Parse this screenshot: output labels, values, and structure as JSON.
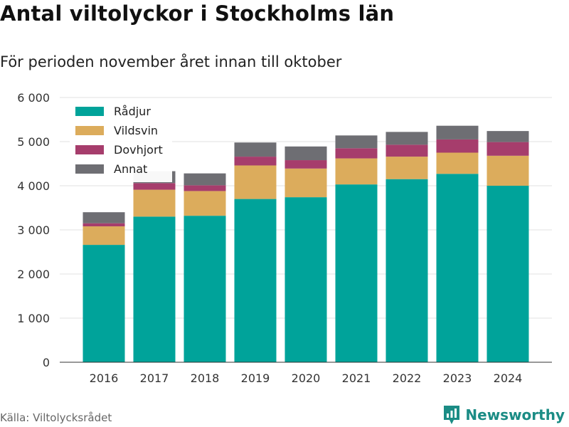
{
  "header": {
    "title": "Antal viltolyckor i Stockholms län",
    "subtitle": "För perioden november året innan till oktober"
  },
  "footer": {
    "source": "Källa: Viltolycksrådet",
    "brand": "Newsworthy",
    "brand_icon": "newsworthy-logo-icon"
  },
  "chart_data": {
    "type": "bar",
    "stacked": true,
    "categories": [
      "2016",
      "2017",
      "2018",
      "2019",
      "2020",
      "2021",
      "2022",
      "2023",
      "2024"
    ],
    "series": [
      {
        "name": "Rådjur",
        "color": "#00a39a",
        "values": [
          2660,
          3300,
          3320,
          3700,
          3740,
          4030,
          4150,
          4270,
          4000
        ]
      },
      {
        "name": "Vildsvin",
        "color": "#dcac5c",
        "values": [
          420,
          610,
          560,
          760,
          650,
          590,
          510,
          480,
          680
        ]
      },
      {
        "name": "Dovhjort",
        "color": "#a63d6c",
        "values": [
          70,
          150,
          130,
          200,
          190,
          230,
          270,
          300,
          310
        ]
      },
      {
        "name": "Annat",
        "color": "#6e6e73",
        "values": [
          250,
          270,
          270,
          320,
          310,
          290,
          290,
          310,
          250
        ]
      }
    ],
    "yticks": [
      0,
      1000,
      2000,
      3000,
      4000,
      5000,
      6000
    ],
    "ytick_labels": [
      "0",
      "1 000",
      "2 000",
      "3 000",
      "4 000",
      "5 000",
      "6 000"
    ],
    "ylim": [
      0,
      6000
    ],
    "grid": true,
    "legend_position": "top-left"
  }
}
